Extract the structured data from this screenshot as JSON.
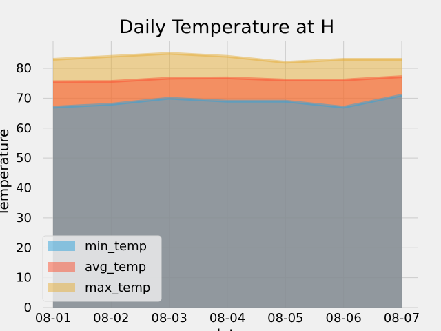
{
  "chart_data": {
    "type": "area",
    "title": "Daily Temperature at H",
    "xlabel": "date",
    "ylabel": "Temperature",
    "categories": [
      "08-01",
      "08-02",
      "08-03",
      "08-04",
      "08-05",
      "08-06",
      "08-07"
    ],
    "yticks": [
      0,
      10,
      20,
      30,
      40,
      50,
      60,
      70,
      80
    ],
    "ylim": [
      0,
      89
    ],
    "grid": true,
    "legend_position": "lower-left",
    "series": [
      {
        "name": "min_temp",
        "values": [
          67,
          68,
          70,
          69,
          69,
          67,
          71
        ],
        "color": "#30a2da"
      },
      {
        "name": "avg_temp",
        "values": [
          75.5,
          75.6,
          76.7,
          76.8,
          76.1,
          76.1,
          77.2
        ],
        "color": "#fc4f30"
      },
      {
        "name": "max_temp",
        "values": [
          83,
          84,
          85,
          84,
          82,
          83,
          83
        ],
        "color": "#e5ae38"
      }
    ]
  }
}
